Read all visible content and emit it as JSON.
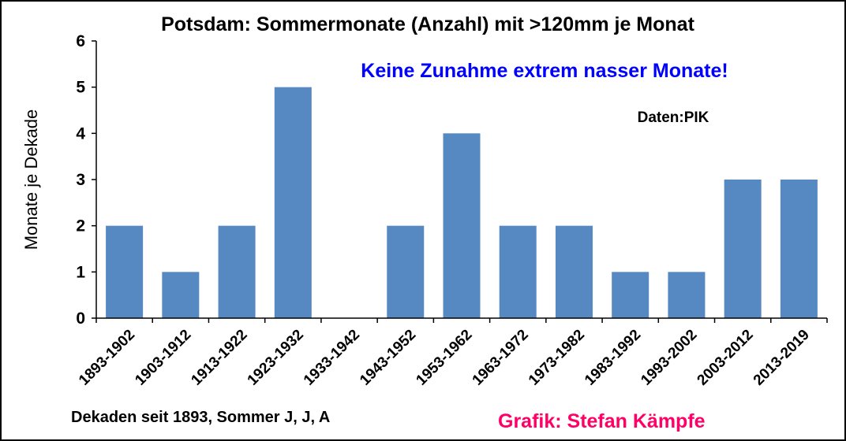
{
  "chart_data": {
    "type": "bar",
    "title": "Potsdam: Sommermonate (Anzahl) mit >120mm je Monat",
    "annotation": "Keine Zunahme extrem nasser Monate!",
    "source": "Daten:PIK",
    "ylabel": "Monate je Dekade",
    "xlabel": "Dekaden seit 1893, Sommer J, J, A",
    "credit": "Grafik: Stefan Kämpfe",
    "categories": [
      "1893-1902",
      "1903-1912",
      "1913-1922",
      "1923-1932",
      "1933-1942",
      "1943-1952",
      "1953-1962",
      "1963-1972",
      "1973-1982",
      "1983-1992",
      "1993-2002",
      "2003-2012",
      "2013-2019"
    ],
    "values": [
      2,
      1,
      2,
      5,
      0,
      2,
      4,
      2,
      2,
      1,
      1,
      3,
      3
    ],
    "ylim": [
      0,
      6
    ],
    "yticks": [
      0,
      1,
      2,
      3,
      4,
      5,
      6
    ],
    "grid": false,
    "legend": "none",
    "colors": {
      "bar": "#5689c2",
      "annotation": "#0000ff",
      "credit": "#ff0066",
      "text": "#000000"
    }
  }
}
